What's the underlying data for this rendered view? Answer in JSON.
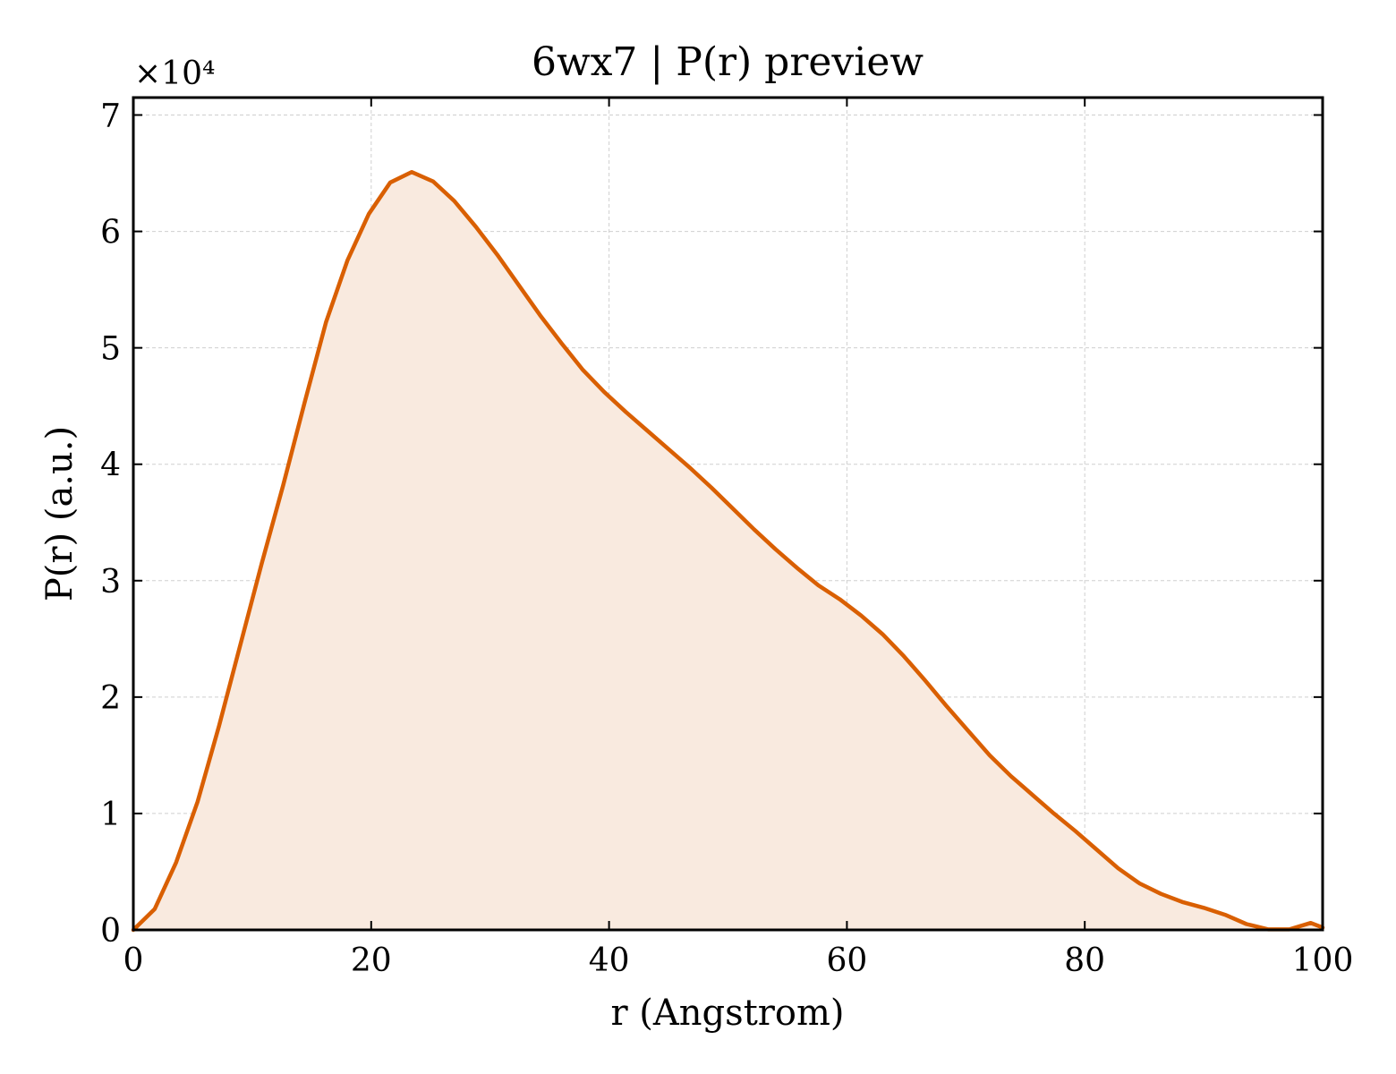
{
  "chart_data": {
    "type": "area",
    "title": "6wx7 | P(r) preview",
    "xlabel": "r (Angstrom)",
    "ylabel": "P(r) (a.u.)",
    "y_multiplier": "×10⁴",
    "xlim": [
      0,
      100
    ],
    "ylim": [
      0,
      71500
    ],
    "x_ticks": [
      0,
      20,
      40,
      60,
      80,
      100
    ],
    "y_ticks": [
      0,
      10000,
      20000,
      30000,
      40000,
      50000,
      60000,
      70000
    ],
    "y_tick_labels": [
      "0",
      "1",
      "2",
      "3",
      "4",
      "5",
      "6",
      "7"
    ],
    "grid": true,
    "legend": "none",
    "colors": {
      "line": "#d95f02",
      "fill": "#f9eadf",
      "grid": "#cfcfcf"
    },
    "series": [
      {
        "x": [
          0,
          1.8,
          3.6,
          5.4,
          7.2,
          9.0,
          10.8,
          12.6,
          14.4,
          16.2,
          18.0,
          19.8,
          21.6,
          23.4,
          25.2,
          27.0,
          28.8,
          30.6,
          32.4,
          34.2,
          36.0,
          37.8,
          39.6,
          41.4,
          43.2,
          45.0,
          46.8,
          48.6,
          50.4,
          52.2,
          54.0,
          55.8,
          57.6,
          59.4,
          61.2,
          63.0,
          64.8,
          66.6,
          68.4,
          70.2,
          72.0,
          73.8,
          75.6,
          77.4,
          79.2,
          81.0,
          82.8,
          84.6,
          86.4,
          88.2,
          90.0,
          91.8,
          93.6,
          95.4,
          97.2,
          99.0,
          100
        ],
        "y": [
          0,
          1800,
          5800,
          11000,
          17500,
          24500,
          31500,
          38200,
          45300,
          52200,
          57500,
          61500,
          64200,
          65100,
          64300,
          62600,
          60400,
          58000,
          55400,
          52800,
          50400,
          48100,
          46200,
          44500,
          42900,
          41300,
          39700,
          38000,
          36200,
          34400,
          32700,
          31100,
          29600,
          28400,
          27000,
          25400,
          23500,
          21400,
          19200,
          17100,
          15000,
          13200,
          11600,
          10000,
          8500,
          6900,
          5300,
          4000,
          3100,
          2400,
          1900,
          1300,
          500,
          50,
          50,
          600,
          200
        ]
      }
    ]
  }
}
